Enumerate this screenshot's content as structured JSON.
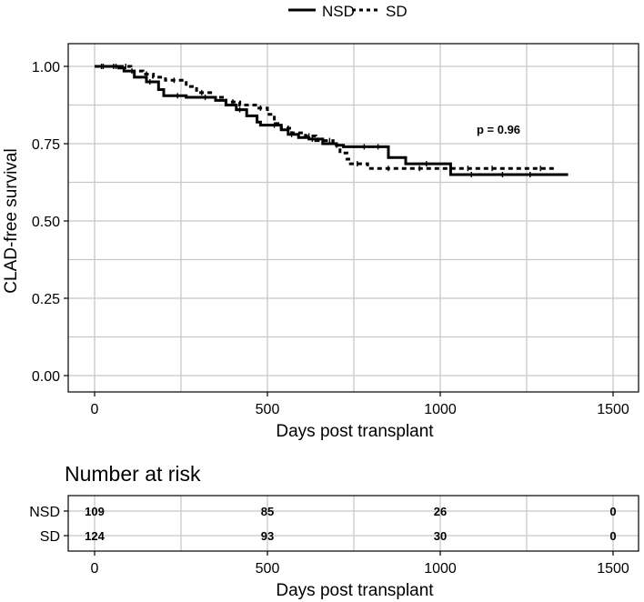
{
  "chart_data": [
    {
      "type": "line",
      "step": true,
      "xlabel": "Days post transplant",
      "ylabel": "CLAD-free survival",
      "xlim": [
        0,
        1500
      ],
      "ylim": [
        0,
        1
      ],
      "x_ticks": [
        0,
        500,
        1000,
        1500
      ],
      "y_ticks": [
        "0.00",
        "0.25",
        "0.50",
        "0.75",
        "1.00"
      ],
      "grid": true,
      "legend_position": "top",
      "annotation": "p = 0.96",
      "series": [
        {
          "name": "NSD",
          "dash": "solid",
          "x": [
            0,
            50,
            70,
            85,
            115,
            150,
            185,
            200,
            265,
            350,
            380,
            410,
            440,
            470,
            480,
            540,
            560,
            590,
            620,
            660,
            700,
            720,
            760,
            850,
            900,
            1030,
            1370
          ],
          "y": [
            1.0,
            1.0,
            0.995,
            0.985,
            0.965,
            0.95,
            0.925,
            0.905,
            0.9,
            0.89,
            0.875,
            0.86,
            0.84,
            0.82,
            0.81,
            0.795,
            0.78,
            0.77,
            0.765,
            0.75,
            0.745,
            0.74,
            0.74,
            0.705,
            0.685,
            0.65,
            0.65
          ]
        },
        {
          "name": "SD",
          "dash": "dashed",
          "x": [
            0,
            65,
            105,
            140,
            170,
            205,
            265,
            295,
            340,
            380,
            420,
            470,
            500,
            520,
            540,
            570,
            610,
            640,
            690,
            710,
            730,
            740,
            790,
            1030,
            1335
          ],
          "y": [
            1.0,
            1.0,
            0.985,
            0.975,
            0.965,
            0.955,
            0.935,
            0.915,
            0.9,
            0.885,
            0.875,
            0.865,
            0.845,
            0.815,
            0.8,
            0.785,
            0.775,
            0.76,
            0.745,
            0.72,
            0.7,
            0.685,
            0.67,
            0.67,
            0.67
          ]
        }
      ],
      "tick_marks": {
        "NSD": [
          25,
          62,
          108,
          160,
          240,
          320,
          420,
          520,
          570,
          630,
          700,
          780,
          820,
          960,
          1090,
          1180,
          1260
        ],
        "SD": [
          20,
          55,
          90,
          150,
          230,
          310,
          400,
          480,
          560,
          620,
          680,
          760,
          850,
          940,
          1080,
          1150,
          1290
        ]
      }
    },
    {
      "type": "table",
      "title": "Number at risk",
      "xlabel": "Days post transplant",
      "xlim": [
        0,
        1500
      ],
      "x_ticks": [
        0,
        500,
        1000,
        1500
      ],
      "rows": [
        {
          "group": "NSD",
          "times": [
            0,
            500,
            1000,
            1500
          ],
          "values": [
            109,
            85,
            26,
            0
          ]
        },
        {
          "group": "SD",
          "times": [
            0,
            500,
            1000,
            1500
          ],
          "values": [
            124,
            93,
            30,
            0
          ]
        }
      ]
    }
  ]
}
